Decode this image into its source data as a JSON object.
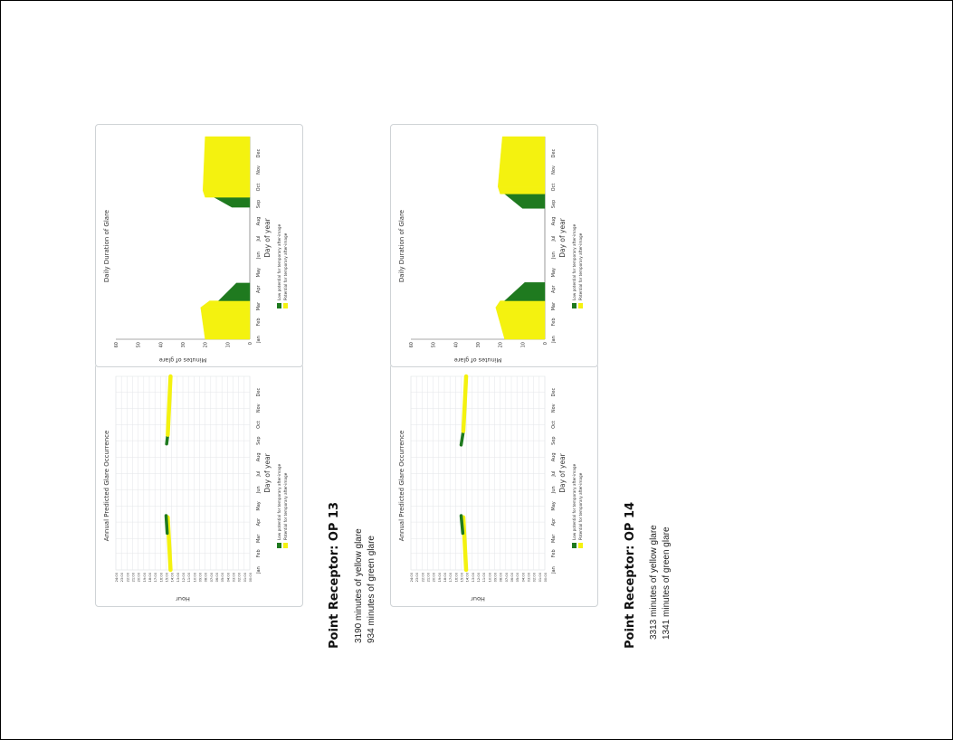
{
  "colors": {
    "green": "#1f7a1f",
    "yellow": "#f4f20f",
    "grid": "#e3e6e8",
    "axis": "#555555",
    "card_border": "#cfd3d6"
  },
  "receptors": [
    {
      "title": "Point Receptor: OP 13",
      "yellow_text": "3190 minutes of yellow glare",
      "green_text": "934 minutes of green glare"
    },
    {
      "title": "Point Receptor: OP 14",
      "yellow_text": "3313 minutes of yellow glare",
      "green_text": "1341 minutes of green glare"
    }
  ],
  "chart_data": [
    {
      "type": "scatter",
      "title": "Annual Predicted Glare Occurrence",
      "xlabel": "Day of year",
      "ylabel": "Hour",
      "x_ticks": [
        "Jan",
        "Feb",
        "Mar",
        "Apr",
        "May",
        "Jun",
        "Jul",
        "Aug",
        "Sep",
        "Oct",
        "Nov",
        "Dec"
      ],
      "y_ticks": [
        "00:00",
        "01:00",
        "02:00",
        "03:00",
        "04:00",
        "05:00",
        "06:00",
        "07:00",
        "08:00",
        "09:00",
        "10:00",
        "11:00",
        "12:00",
        "13:00",
        "14:00",
        "15:00",
        "16:00",
        "17:00",
        "18:00",
        "19:00",
        "20:00",
        "21:00",
        "22:00",
        "23:00",
        "24:00"
      ],
      "ylim": [
        0,
        24
      ],
      "grid": true,
      "legend_position": "bottom",
      "legend": [
        "Low potential for temporary after-image",
        "Potential for temporary after-image"
      ],
      "segments": [
        {
          "series": "yellow",
          "x_start": 1,
          "x_end": 100,
          "hour_start": 14.2,
          "hour_end": 14.7
        },
        {
          "series": "green",
          "x_start": 70,
          "x_end": 103,
          "hour_start": 14.8,
          "hour_end": 15.0
        },
        {
          "series": "green",
          "x_start": 238,
          "x_end": 255,
          "hour_start": 14.9,
          "hour_end": 14.7
        },
        {
          "series": "yellow",
          "x_start": 255,
          "x_end": 365,
          "hour_start": 14.7,
          "hour_end": 14.2
        }
      ]
    },
    {
      "type": "bar",
      "title": "Daily Duration of Glare",
      "xlabel": "Day of year",
      "ylabel": "Minutes of glare",
      "x_ticks": [
        "Jan",
        "Feb",
        "Mar",
        "Apr",
        "May",
        "Jun",
        "Jul",
        "Aug",
        "Sep",
        "Oct",
        "Nov",
        "Dec"
      ],
      "y_ticks": [
        "0",
        "10",
        "20",
        "30",
        "40",
        "50",
        "60"
      ],
      "ylim": [
        0,
        60
      ],
      "grid": false,
      "legend_position": "bottom",
      "legend": [
        "Low potential for temporary after-image",
        "Potential for temporary after-image"
      ],
      "segments": [
        {
          "series": "yellow",
          "x_start": 1,
          "x_end": 58,
          "minutes_start": 20,
          "minutes_end": 22
        },
        {
          "series": "yellow",
          "x_start": 58,
          "x_end": 70,
          "minutes_start": 22,
          "minutes_end": 18
        },
        {
          "series": "green",
          "x_start": 70,
          "x_end": 102,
          "minutes_start": 14,
          "minutes_end": 6
        },
        {
          "series": "green",
          "x_start": 238,
          "x_end": 256,
          "minutes_start": 8,
          "minutes_end": 16
        },
        {
          "series": "yellow",
          "x_start": 256,
          "x_end": 268,
          "minutes_start": 20,
          "minutes_end": 21
        },
        {
          "series": "yellow",
          "x_start": 268,
          "x_end": 365,
          "minutes_start": 21,
          "minutes_end": 20
        }
      ]
    },
    {
      "type": "scatter",
      "title": "Annual Predicted Glare Occurrence",
      "xlabel": "Day of year",
      "ylabel": "Hour",
      "x_ticks": [
        "Jan",
        "Feb",
        "Mar",
        "Apr",
        "May",
        "Jun",
        "Jul",
        "Aug",
        "Sep",
        "Oct",
        "Nov",
        "Dec"
      ],
      "y_ticks": [
        "00:00",
        "01:00",
        "02:00",
        "03:00",
        "04:00",
        "05:00",
        "06:00",
        "07:00",
        "08:00",
        "09:00",
        "10:00",
        "11:00",
        "12:00",
        "13:00",
        "14:00",
        "15:00",
        "16:00",
        "17:00",
        "18:00",
        "19:00",
        "20:00",
        "21:00",
        "22:00",
        "23:00",
        "24:00"
      ],
      "ylim": [
        0,
        24
      ],
      "grid": true,
      "legend_position": "bottom",
      "legend": [
        "Low potential for temporary after-image",
        "Potential for temporary after-image"
      ],
      "segments": [
        {
          "series": "yellow",
          "x_start": 1,
          "x_end": 100,
          "hour_start": 14.1,
          "hour_end": 14.6
        },
        {
          "series": "green",
          "x_start": 70,
          "x_end": 103,
          "hour_start": 14.7,
          "hour_end": 15.0
        },
        {
          "series": "green",
          "x_start": 236,
          "x_end": 262,
          "hour_start": 15.0,
          "hour_end": 14.6
        },
        {
          "series": "yellow",
          "x_start": 262,
          "x_end": 365,
          "hour_start": 14.6,
          "hour_end": 14.1
        }
      ]
    },
    {
      "type": "bar",
      "title": "Daily Duration of Glare",
      "xlabel": "Day of year",
      "ylabel": "Minutes of glare",
      "x_ticks": [
        "Jan",
        "Feb",
        "Mar",
        "Apr",
        "May",
        "Jun",
        "Jul",
        "Aug",
        "Sep",
        "Oct",
        "Nov",
        "Dec"
      ],
      "y_ticks": [
        "0",
        "10",
        "20",
        "30",
        "40",
        "50",
        "60"
      ],
      "ylim": [
        0,
        60
      ],
      "grid": false,
      "legend_position": "bottom",
      "legend": [
        "Low potential for temporary after-image",
        "Potential for temporary after-image"
      ],
      "segments": [
        {
          "series": "yellow",
          "x_start": 1,
          "x_end": 58,
          "minutes_start": 18,
          "minutes_end": 22
        },
        {
          "series": "yellow",
          "x_start": 58,
          "x_end": 70,
          "minutes_start": 22,
          "minutes_end": 20
        },
        {
          "series": "green",
          "x_start": 70,
          "x_end": 103,
          "minutes_start": 18,
          "minutes_end": 9
        },
        {
          "series": "green",
          "x_start": 236,
          "x_end": 262,
          "minutes_start": 10,
          "minutes_end": 18
        },
        {
          "series": "yellow",
          "x_start": 262,
          "x_end": 275,
          "minutes_start": 20,
          "minutes_end": 21
        },
        {
          "series": "yellow",
          "x_start": 275,
          "x_end": 365,
          "minutes_start": 21,
          "minutes_end": 19
        }
      ]
    }
  ]
}
